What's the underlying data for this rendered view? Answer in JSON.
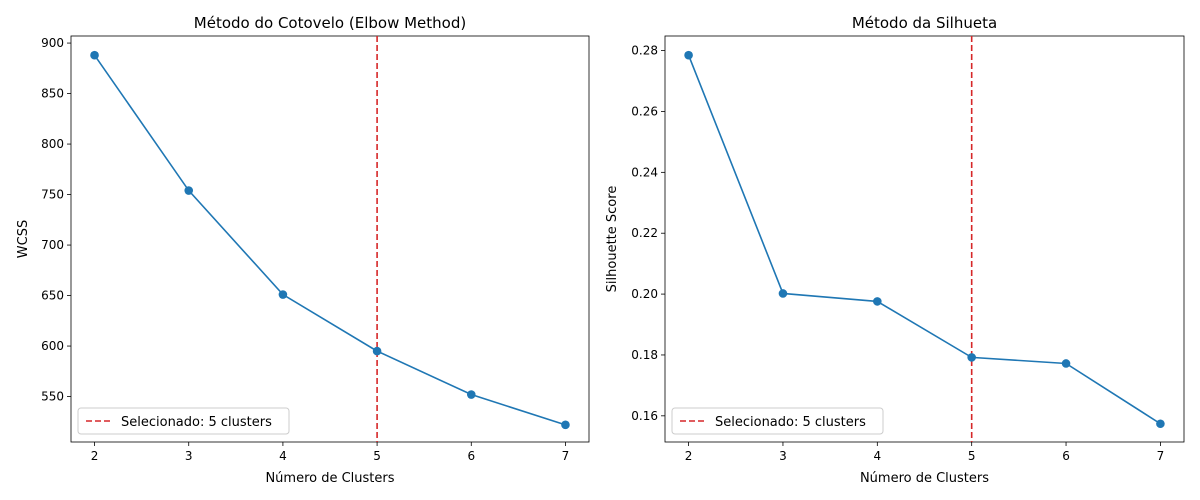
{
  "chart_data": [
    {
      "type": "line",
      "title": "Método do Cotovelo (Elbow Method)",
      "xlabel": "Número de Clusters",
      "ylabel": "WCSS",
      "x": [
        2,
        3,
        4,
        5,
        6,
        7
      ],
      "y": [
        888,
        754,
        651,
        595,
        552,
        522
      ],
      "xlim": [
        1.75,
        7.25
      ],
      "ylim": [
        505,
        907
      ],
      "xticks": [
        2,
        3,
        4,
        5,
        6,
        7
      ],
      "yticks": [
        550,
        600,
        650,
        700,
        750,
        800,
        850,
        900
      ],
      "ytick_decimals": 0,
      "line_color": "#1f77b4",
      "vline": {
        "x": 5,
        "color": "#d62728",
        "style": "dashed"
      },
      "legend": {
        "label": "Selecionado: 5 clusters",
        "placement": "lower-left"
      },
      "grid": false
    },
    {
      "type": "line",
      "title": "Método da Silhueta",
      "xlabel": "Número de Clusters",
      "ylabel": "Silhouette Score",
      "x": [
        2,
        3,
        4,
        5,
        6,
        7
      ],
      "y": [
        0.2785,
        0.2002,
        0.1976,
        0.1792,
        0.1772,
        0.1574
      ],
      "xlim": [
        1.75,
        7.25
      ],
      "ylim": [
        0.1514,
        0.2848
      ],
      "xticks": [
        2,
        3,
        4,
        5,
        6,
        7
      ],
      "yticks": [
        0.16,
        0.18,
        0.2,
        0.22,
        0.24,
        0.26,
        0.28
      ],
      "ytick_decimals": 2,
      "line_color": "#1f77b4",
      "vline": {
        "x": 5,
        "color": "#d62728",
        "style": "dashed"
      },
      "legend": {
        "label": "Selecionado: 5 clusters",
        "placement": "lower-left"
      },
      "grid": false
    }
  ]
}
